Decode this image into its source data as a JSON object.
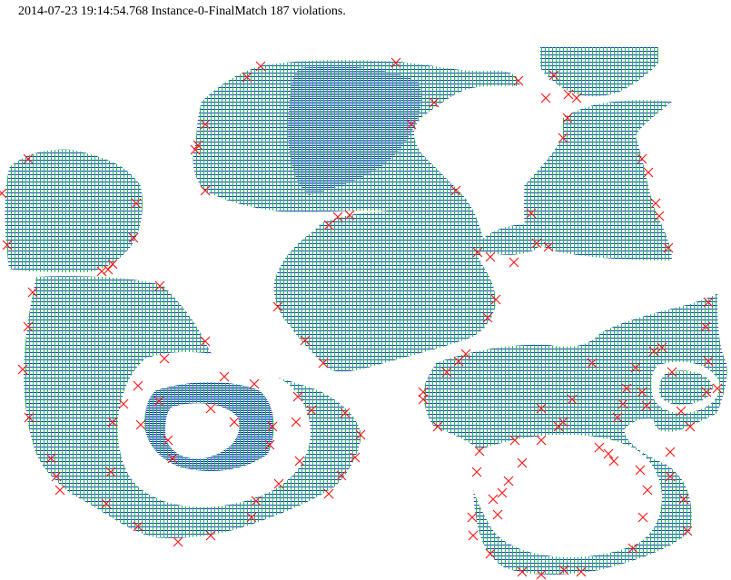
{
  "header": {
    "title": "2014-07-23 19:14:54.768 Instance-0-FinalMatch 187 violations."
  },
  "colors": {
    "grid_green": "#22bb55",
    "grid_blue": "#1a3ad6",
    "violation_red": "#ff1a1a",
    "background": "#ffffff"
  }
}
